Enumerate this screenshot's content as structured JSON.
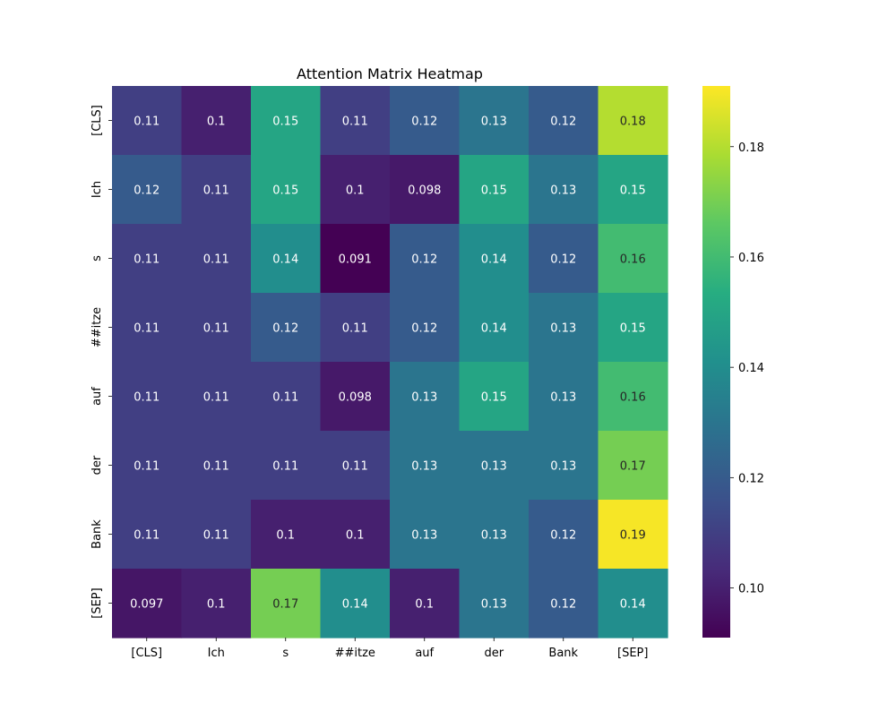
{
  "chart_data": {
    "type": "heatmap",
    "title": "Attention Matrix Heatmap",
    "xlabel": "",
    "ylabel": "",
    "x_labels": [
      "[CLS]",
      "Ich",
      "s",
      "##itze",
      "auf",
      "der",
      "Bank",
      "[SEP]"
    ],
    "y_labels": [
      "[CLS]",
      "Ich",
      "s",
      "##itze",
      "auf",
      "der",
      "Bank",
      "[SEP]"
    ],
    "values": [
      [
        0.11,
        0.1,
        0.15,
        0.11,
        0.12,
        0.13,
        0.12,
        0.18
      ],
      [
        0.12,
        0.11,
        0.15,
        0.1,
        0.098,
        0.15,
        0.13,
        0.15
      ],
      [
        0.11,
        0.11,
        0.14,
        0.091,
        0.12,
        0.14,
        0.12,
        0.16
      ],
      [
        0.11,
        0.11,
        0.12,
        0.11,
        0.12,
        0.14,
        0.13,
        0.15
      ],
      [
        0.11,
        0.11,
        0.11,
        0.098,
        0.13,
        0.15,
        0.13,
        0.16
      ],
      [
        0.11,
        0.11,
        0.11,
        0.11,
        0.13,
        0.13,
        0.13,
        0.17
      ],
      [
        0.11,
        0.11,
        0.1,
        0.1,
        0.13,
        0.13,
        0.12,
        0.19
      ],
      [
        0.097,
        0.1,
        0.17,
        0.14,
        0.1,
        0.13,
        0.12,
        0.14
      ]
    ],
    "colormap": "viridis",
    "color_range": [
      0.091,
      0.191
    ],
    "colorbar_ticks": [
      "0.10",
      "0.12",
      "0.14",
      "0.16",
      "0.18"
    ],
    "annotations": true,
    "grid": false,
    "legend": "colorbar-right"
  }
}
